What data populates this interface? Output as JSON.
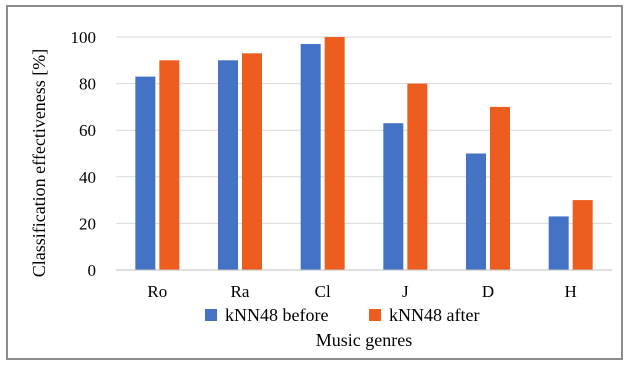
{
  "chart_data": {
    "type": "bar",
    "categories": [
      "Ro",
      "Ra",
      "Cl",
      "J",
      "D",
      "H"
    ],
    "series": [
      {
        "name": "kNN48 before",
        "values": [
          83,
          90,
          97,
          63,
          50,
          23
        ],
        "color": "#4472c4"
      },
      {
        "name": "kNN48 after",
        "values": [
          90,
          93,
          100,
          80,
          70,
          30
        ],
        "color": "#ed5d1f"
      }
    ],
    "title": "",
    "xlabel": "Music genres",
    "ylabel": "Classification effectiveness [%]",
    "ylim": [
      0,
      100
    ],
    "yticks": [
      0,
      20,
      40,
      60,
      80,
      100
    ],
    "grid": "horizontal",
    "legend_position": "bottom"
  }
}
